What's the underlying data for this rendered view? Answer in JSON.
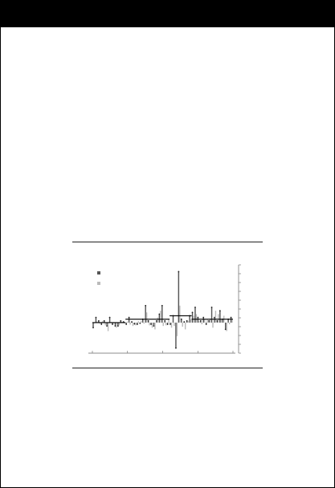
{
  "page": {
    "header_band_color": "#000000",
    "border_color": "#000000"
  },
  "chart_data": {
    "type": "bar",
    "title": "",
    "xlabel": "",
    "ylabel": "",
    "legend": {
      "placement": "top-left",
      "entries": [
        {
          "color": "#555555"
        },
        {
          "color": "#bbbbbb"
        }
      ]
    },
    "ylim": [
      -9,
      17
    ],
    "y_ticks": 11,
    "x_ticks": 5,
    "grid": false,
    "series": [
      {
        "color": "#555555",
        "values": [
          -1.5,
          1.5,
          0.5,
          -0.5,
          0.5,
          -1,
          1.5,
          -0.5,
          -1,
          -1,
          0.5,
          0.2,
          -0.5,
          1.5,
          0.2,
          -0.4,
          -0.5,
          -0.2,
          1.0,
          5.0,
          0.5,
          -0.5,
          -1.0,
          0.5,
          2.5,
          5.0,
          0.5,
          -0.5,
          -0.5,
          2.0,
          -7.5,
          15.0,
          1.0,
          0.2,
          0.5,
          2.0,
          3.0,
          4.5,
          1.5,
          0.5,
          1.5,
          -0.5,
          0.5,
          4.5,
          1.5,
          0.5,
          3.5,
          1.0,
          -2.0,
          1.0,
          1.5
        ]
      },
      {
        "color": "#bbbbbb",
        "values": [
          -0.2,
          0.3,
          -0.3,
          0.5,
          -0.8,
          -2.5,
          0.2,
          -0.2,
          -1.5,
          -0.8,
          0.2,
          -0.2,
          0.3,
          -0.6,
          -1.0,
          -0.8,
          0.4,
          0.5,
          -0.3,
          3.0,
          -0.8,
          -1.5,
          -2.0,
          1.5,
          3.5,
          -1.0,
          -0.8,
          1.0,
          -1.5,
          -1.0,
          -4.0,
          5.0,
          -1.2,
          -2.0,
          0.5,
          1.0,
          2.0,
          2.5,
          0.5,
          -0.5,
          1.0,
          0.8,
          1.2,
          -1.5,
          3.5,
          2.5,
          1.0,
          2.0,
          -2.5,
          -0.5,
          0.8
        ]
      }
    ],
    "reference_line": {
      "color": "#000000",
      "segments": [
        {
          "from": 0,
          "to": 12,
          "value": 0
        },
        {
          "from": 12,
          "to": 28,
          "value": 1.0
        },
        {
          "from": 28,
          "to": 36,
          "value": 2.0
        },
        {
          "from": 36,
          "to": 51,
          "value": 1.0
        }
      ]
    }
  }
}
